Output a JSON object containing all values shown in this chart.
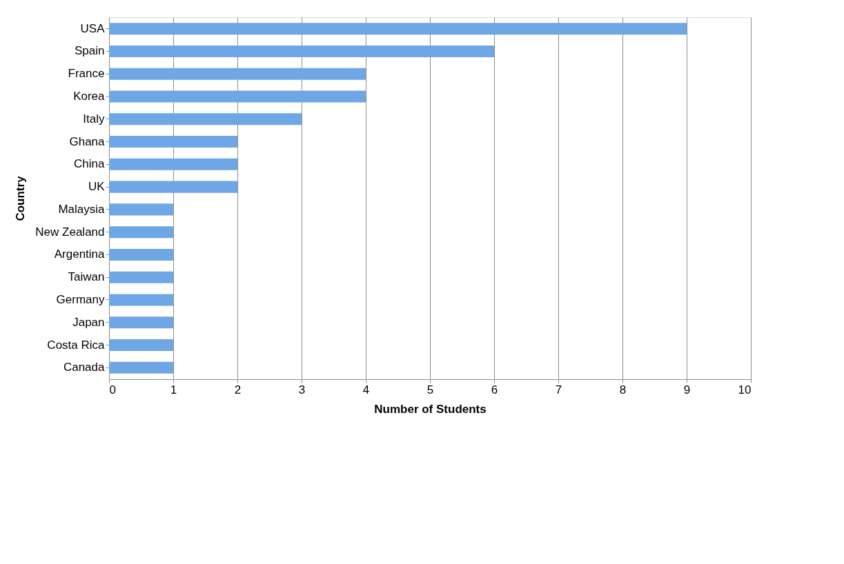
{
  "chart_data": {
    "type": "bar",
    "orientation": "horizontal",
    "categories": [
      "USA",
      "Spain",
      "France",
      "Korea",
      "Italy",
      "Ghana",
      "China",
      "UK",
      "Malaysia",
      "New Zealand",
      "Argentina",
      "Taiwan",
      "Germany",
      "Japan",
      "Costa Rica",
      "Canada"
    ],
    "values": [
      9,
      6,
      4,
      4,
      3,
      2,
      2,
      2,
      1,
      1,
      1,
      1,
      1,
      1,
      1,
      1
    ],
    "color": "#6fa6e6",
    "xlabel": "Number of Students",
    "ylabel": "Country",
    "xlim": [
      0,
      10
    ],
    "xticks": [
      0,
      1,
      2,
      3,
      4,
      5,
      6,
      7,
      8,
      9,
      10
    ],
    "grid": "x"
  }
}
